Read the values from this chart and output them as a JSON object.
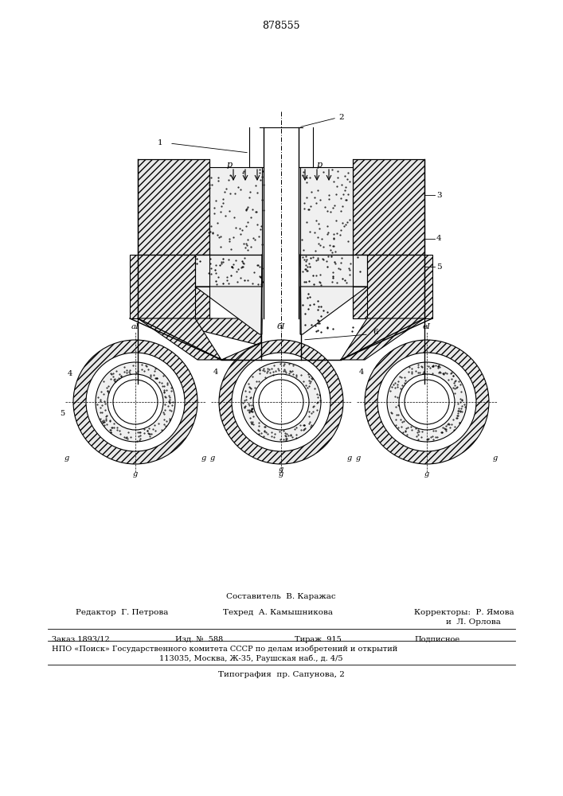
{
  "patent_number": "878555",
  "bg_color": "#ffffff",
  "line_color": "#000000",
  "hatch_color": "#000000",
  "fig_width": 7.07,
  "fig_height": 10.0,
  "footer_lines": [
    "Составитель  В. Каражас",
    "Редактор  Г. Петрова        Техред  А. Камышникова        Корректоры:  Р. Ямова",
    "                                                                                                    и  Л. Орлова",
    "Заказ 1893/12              Изд. №  588          Тираж  915          Подписное",
    "НПО «Поиск» Государственного комитета СССР по делам изобретений и открытий",
    "                    113035, Москва, Ж-35, Раушская наб., д. 4/5",
    "                    Типография  пр. Сапунова, 2"
  ]
}
